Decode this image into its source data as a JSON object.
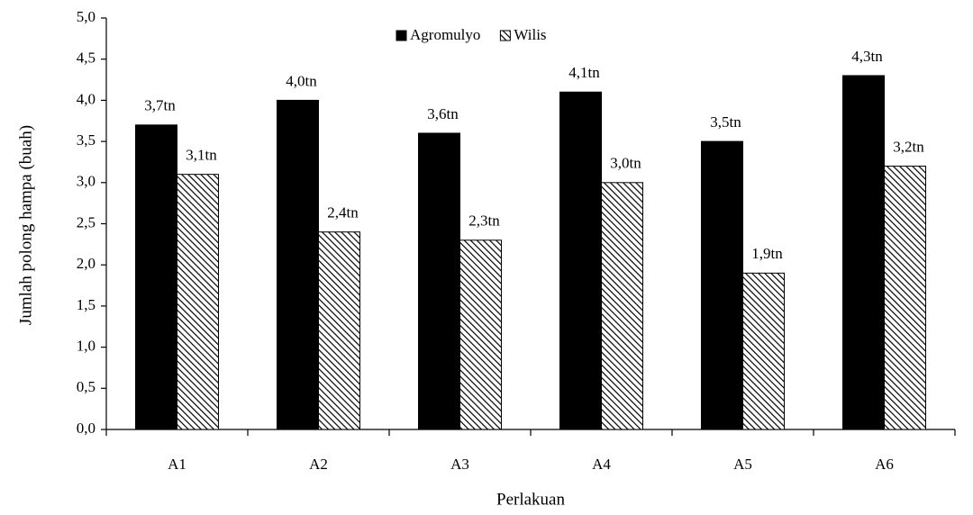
{
  "chart_data": {
    "type": "bar",
    "categories": [
      "A1",
      "A2",
      "A3",
      "A4",
      "A5",
      "A6"
    ],
    "series": [
      {
        "name": "Agromulyo",
        "color": "#000000",
        "pattern": "solid",
        "values": [
          3.7,
          4.0,
          3.6,
          4.1,
          3.5,
          4.3
        ],
        "value_labels": [
          "3,7tn",
          "4,0tn",
          "3,6tn",
          "4,1tn",
          "3,5tn",
          "4,3tn"
        ]
      },
      {
        "name": "Wilis",
        "color": "#000000",
        "pattern": "hatch",
        "values": [
          3.1,
          2.4,
          2.3,
          3.0,
          1.9,
          3.2
        ],
        "value_labels": [
          "3,1tn",
          "2,4tn",
          "2,3tn",
          "3,0tn",
          "1,9tn",
          "3,2tn"
        ]
      }
    ],
    "xlabel": "Perlakuan",
    "ylabel": "Jumlah polong hampa (buah)",
    "ylim": [
      0,
      5
    ],
    "yticks": [
      {
        "value": 0,
        "label": "0,0"
      },
      {
        "value": 0.5,
        "label": "0,5"
      },
      {
        "value": 1,
        "label": "1,0"
      },
      {
        "value": 1.5,
        "label": "1,5"
      },
      {
        "value": 2,
        "label": "2,0"
      },
      {
        "value": 2.5,
        "label": "2,5"
      },
      {
        "value": 3,
        "label": "3,0"
      },
      {
        "value": 3.5,
        "label": "3,5"
      },
      {
        "value": 4,
        "label": "4,0"
      },
      {
        "value": 4.5,
        "label": "4,5"
      },
      {
        "value": 5,
        "label": "5,0"
      }
    ],
    "grid": false,
    "legend": "top"
  }
}
